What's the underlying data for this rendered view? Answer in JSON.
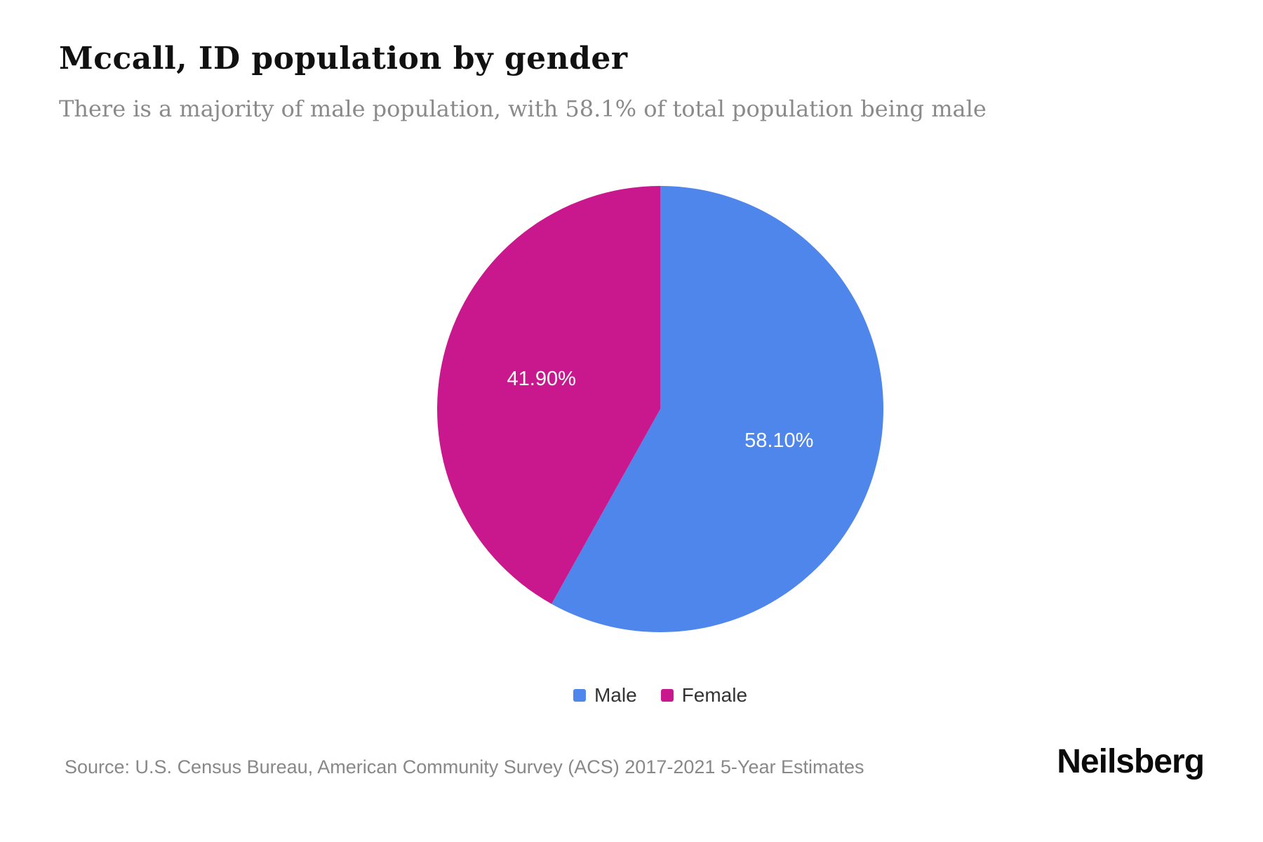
{
  "header": {
    "title": "Mccall, ID population by gender",
    "subtitle": "There is a majority of male population, with 58.1% of total population being male"
  },
  "chart_data": {
    "type": "pie",
    "title": "Mccall, ID population by gender",
    "start_angle_deg": 0,
    "direction": "clockwise",
    "legend_position": "bottom",
    "label_color": "#ffffff",
    "slices": [
      {
        "label": "Male",
        "value": 58.1,
        "display": "58.10%",
        "color": "#4e86ec"
      },
      {
        "label": "Female",
        "value": 41.9,
        "display": "41.90%",
        "color": "#c9188e"
      }
    ]
  },
  "footer": {
    "source": "Source: U.S. Census Bureau, American Community Survey (ACS) 2017-2021 5-Year Estimates",
    "brand": "Neilsberg"
  }
}
